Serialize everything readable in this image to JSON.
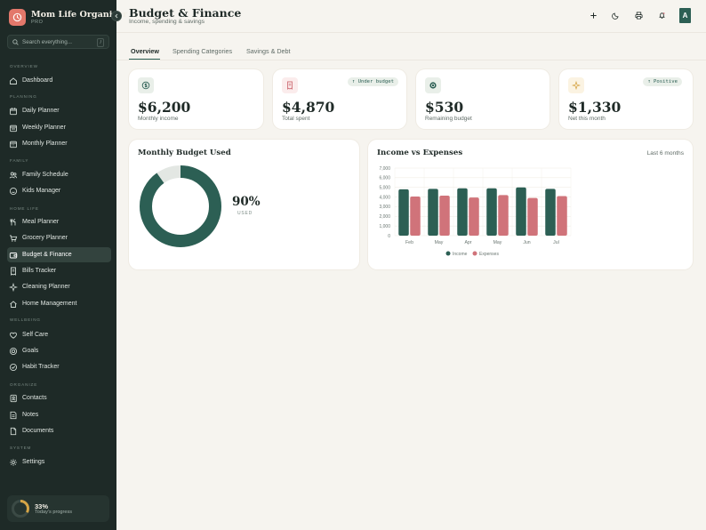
{
  "brand": {
    "title": "Mom Life Organizer",
    "subtitle": "PRO",
    "icon": "clock-icon"
  },
  "search": {
    "placeholder": "Search everything...",
    "shortcut": "/"
  },
  "nav": {
    "sections": [
      {
        "label": "OVERVIEW",
        "items": [
          {
            "label": "Dashboard",
            "icon": "home-icon"
          }
        ]
      },
      {
        "label": "PLANNING",
        "items": [
          {
            "label": "Daily Planner",
            "icon": "calendar-icon"
          },
          {
            "label": "Weekly Planner",
            "icon": "calendar-week-icon"
          },
          {
            "label": "Monthly Planner",
            "icon": "calendar-month-icon"
          }
        ]
      },
      {
        "label": "FAMILY",
        "items": [
          {
            "label": "Family Schedule",
            "icon": "users-icon"
          },
          {
            "label": "Kids Manager",
            "icon": "smile-icon"
          }
        ]
      },
      {
        "label": "HOME LIFE",
        "items": [
          {
            "label": "Meal Planner",
            "icon": "utensils-icon"
          },
          {
            "label": "Grocery Planner",
            "icon": "cart-icon"
          },
          {
            "label": "Budget & Finance",
            "icon": "wallet-icon",
            "active": true
          },
          {
            "label": "Bills Tracker",
            "icon": "receipt-icon"
          },
          {
            "label": "Cleaning Planner",
            "icon": "sparkle-icon"
          },
          {
            "label": "Home Management",
            "icon": "house-icon"
          }
        ]
      },
      {
        "label": "WELLBEING",
        "items": [
          {
            "label": "Self Care",
            "icon": "heart-icon"
          },
          {
            "label": "Goals",
            "icon": "target-icon"
          },
          {
            "label": "Habit Tracker",
            "icon": "check-circle-icon"
          }
        ]
      },
      {
        "label": "ORGANIZE",
        "items": [
          {
            "label": "Contacts",
            "icon": "address-book-icon"
          },
          {
            "label": "Notes",
            "icon": "note-icon"
          },
          {
            "label": "Documents",
            "icon": "document-icon"
          }
        ]
      },
      {
        "label": "SYSTEM",
        "items": [
          {
            "label": "Settings",
            "icon": "gear-icon"
          }
        ]
      }
    ]
  },
  "progress": {
    "percent_text": "33%",
    "value": 0.33,
    "label": "Today's progress"
  },
  "header": {
    "title": "Budget & Finance",
    "subtitle": "Income, spending & savings",
    "avatar": "A",
    "actions": [
      "plus-icon",
      "moon-icon",
      "print-icon",
      "bell-icon"
    ]
  },
  "tabs": [
    {
      "label": "Overview",
      "active": true
    },
    {
      "label": "Spending Categories"
    },
    {
      "label": "Savings & Debt"
    }
  ],
  "stats": [
    {
      "value": "$6,200",
      "label": "Monthly income",
      "icon": "dollar-icon",
      "icon_color": "#2c5f54",
      "icon_bg": "#e9efe9",
      "badge": ""
    },
    {
      "value": "$4,870",
      "label": "Total spent",
      "icon": "receipt-icon",
      "icon_color": "#d0737a",
      "icon_bg": "#fbecec",
      "badge": "↑ Under budget"
    },
    {
      "value": "$530",
      "label": "Remaining budget",
      "icon": "piggy-icon",
      "icon_color": "#2c5f54",
      "icon_bg": "#e9efe9",
      "badge": ""
    },
    {
      "value": "$1,330",
      "label": "Net this month",
      "icon": "sparkle-icon",
      "icon_color": "#d6a546",
      "icon_bg": "#fbf3e2",
      "badge": "↑ Positive"
    }
  ],
  "budget_used": {
    "title": "Monthly Budget Used",
    "percent_text": "90%",
    "value": 0.9,
    "caption": "USED"
  },
  "income_vs_expenses": {
    "title": "Income vs Expenses",
    "range_label": "Last 6 months"
  },
  "chart_data": {
    "type": "bar",
    "title": "Income vs Expenses",
    "categories": [
      "Feb",
      "May",
      "Apr",
      "May",
      "Jun",
      "Jul"
    ],
    "series": [
      {
        "name": "Income",
        "color": "#2c5f54",
        "values": [
          4800,
          4850,
          4900,
          4900,
          5000,
          4850
        ]
      },
      {
        "name": "Expenses",
        "color": "#d0737a",
        "values": [
          4050,
          4150,
          3950,
          4200,
          3900,
          4100
        ]
      }
    ],
    "yticks": [
      "7,000",
      "6,000",
      "5,000",
      "4,000",
      "3,000",
      "2,000",
      "1,000",
      "0"
    ],
    "ylim": [
      0,
      7000
    ],
    "grid": true,
    "legend": "bottom"
  }
}
